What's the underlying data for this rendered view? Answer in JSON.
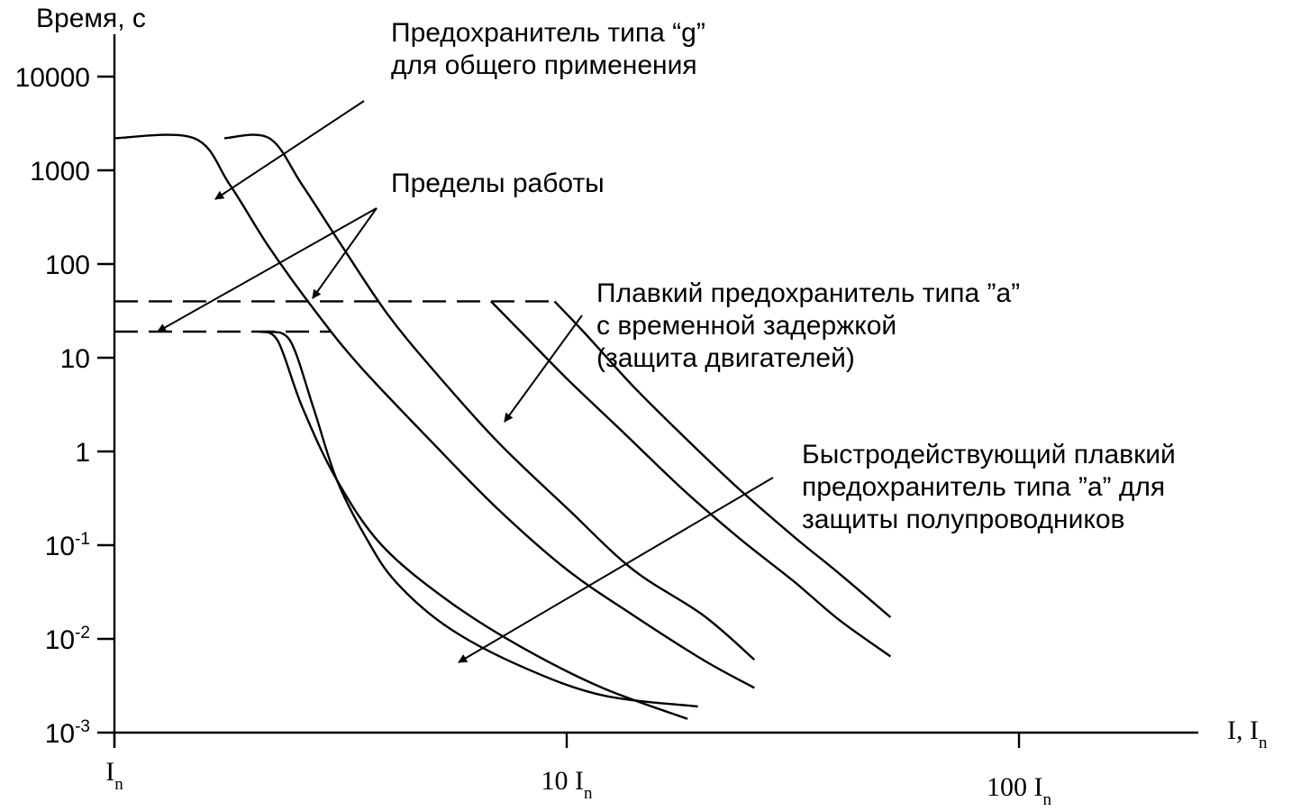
{
  "chart_data": {
    "type": "line",
    "title": "",
    "xlabel": "I, In",
    "ylabel": "Время, с",
    "x_scale": "log",
    "y_scale": "log",
    "xlim": [
      1,
      200
    ],
    "ylim": [
      0.001,
      30000
    ],
    "grid": false,
    "y_ticks": [
      {
        "value": 10000,
        "base": "10000",
        "exp": ""
      },
      {
        "value": 1000,
        "base": "1000",
        "exp": ""
      },
      {
        "value": 100,
        "base": "100",
        "exp": ""
      },
      {
        "value": 10,
        "base": "10",
        "exp": ""
      },
      {
        "value": 1,
        "base": "1",
        "exp": ""
      },
      {
        "value": 0.1,
        "base": "10",
        "exp": "-1"
      },
      {
        "value": 0.01,
        "base": "10",
        "exp": "-2"
      },
      {
        "value": 0.001,
        "base": "10",
        "exp": "-3"
      }
    ],
    "x_ticks": [
      {
        "value": 1,
        "base": "I",
        "sub": "n"
      },
      {
        "value": 10,
        "base": "10 I",
        "sub": "n"
      },
      {
        "value": 100,
        "base": "100 I",
        "sub": "n"
      }
    ],
    "series": [
      {
        "style": "solid",
        "x": [
          1.0,
          1.5,
          1.8,
          2.2,
          2.8,
          3.5,
          5,
          7,
          10,
          14,
          20,
          26
        ],
        "y": [
          2200,
          2200,
          700,
          150,
          30,
          8,
          1.3,
          0.25,
          0.055,
          0.018,
          0.006,
          0.003
        ]
      },
      {
        "style": "solid",
        "x": [
          1.75,
          2.2,
          2.6,
          3.2,
          4,
          5,
          7,
          10,
          14,
          20,
          26
        ],
        "y": [
          2200,
          2200,
          700,
          150,
          30,
          8,
          1.3,
          0.25,
          0.055,
          0.018,
          0.006
        ]
      },
      {
        "style": "dashed",
        "x": [
          1.0,
          9.4
        ],
        "y": [
          40,
          40
        ]
      },
      {
        "style": "dashed",
        "x": [
          1.0,
          3.0
        ],
        "y": [
          19,
          19
        ]
      },
      {
        "style": "solid",
        "x": [
          6.8,
          8,
          10,
          13,
          18,
          24,
          32,
          40,
          52
        ],
        "y": [
          40,
          18,
          6,
          1.8,
          0.4,
          0.12,
          0.04,
          0.016,
          0.0065
        ]
      },
      {
        "style": "solid",
        "x": [
          9.4,
          11,
          14,
          18,
          24,
          32,
          40,
          52
        ],
        "y": [
          40,
          18,
          5,
          1.5,
          0.4,
          0.12,
          0.05,
          0.017
        ]
      },
      {
        "style": "solid",
        "x": [
          2.1,
          2.3,
          2.6,
          3.1,
          3.9,
          5.5,
          8,
          12,
          18.5
        ],
        "y": [
          19,
          15,
          3,
          0.5,
          0.1,
          0.025,
          0.008,
          0.003,
          0.0014
        ]
      },
      {
        "style": "solid",
        "x": [
          2.2,
          2.45,
          2.75,
          3.1,
          3.6,
          4.2,
          5.5,
          8,
          12,
          19.5
        ],
        "y": [
          19,
          15,
          3,
          0.5,
          0.12,
          0.04,
          0.013,
          0.005,
          0.0025,
          0.0019
        ]
      }
    ],
    "annotations": [
      {
        "lines": [
          "Предохранитель типа “g”",
          "для общего применения"
        ]
      },
      {
        "lines": [
          "Пределы работы"
        ]
      },
      {
        "lines": [
          "Плавкий предохранитель типа ”a”",
          "с временной задержкой",
          "(защита двигателей)"
        ]
      },
      {
        "lines": [
          "Быстродействующий плавкий",
          "предохранитель типа ”a” для",
          "защиты полупроводников"
        ]
      }
    ]
  }
}
